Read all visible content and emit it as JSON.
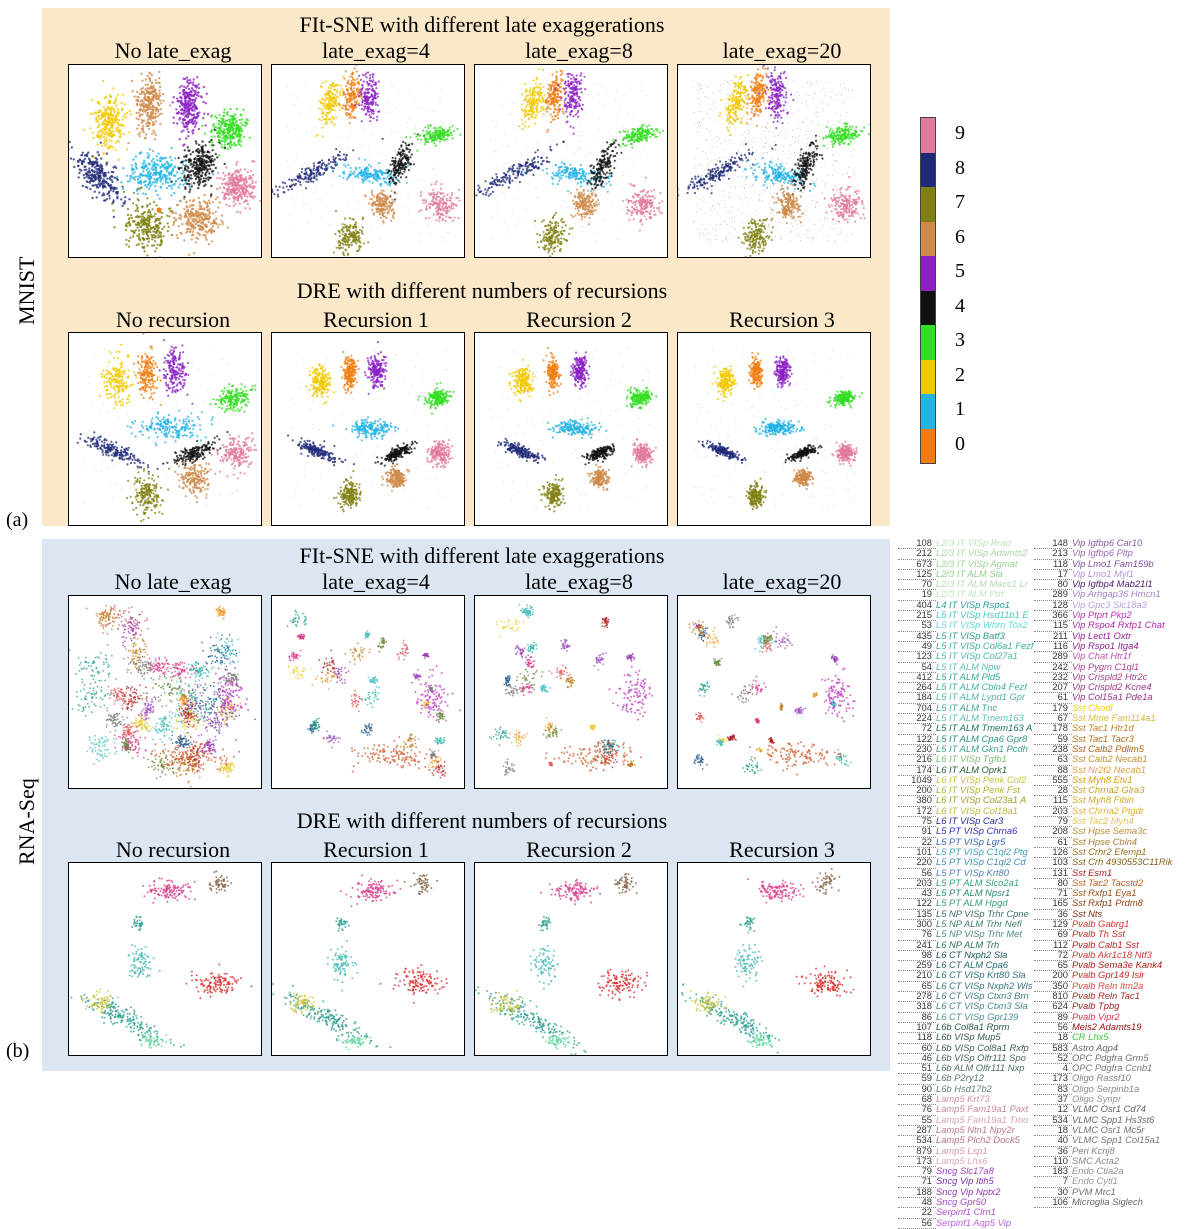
{
  "figure": {
    "a_label": "(a)",
    "b_label": "(b)",
    "mnist_label": "MNIST",
    "rnaseq_label": "RNA-Seq",
    "bg_colors": {
      "mnist": "#fbe8c8",
      "rna": "#dce6f2"
    }
  },
  "mnist": {
    "fitsne_title": "FIt-SNE with different late exaggerations",
    "dre_title": "DRE with different numbers of recursions",
    "fitsne_cols": [
      "No late_exag",
      "late_exag=4",
      "late_exag=8",
      "late_exag=20"
    ],
    "dre_cols": [
      "No recursion",
      "Recursion 1",
      "Recursion 2",
      "Recursion 3"
    ]
  },
  "rna": {
    "fitsne_title": "FIt-SNE with different late exaggerations",
    "dre_title": "DRE with different numbers of recursions",
    "fitsne_cols": [
      "No late_exag",
      "late_exag=4",
      "late_exag=8",
      "late_exag=20"
    ],
    "dre_cols": [
      "No recursion",
      "Recursion 1",
      "Recursion 2",
      "Recursion 3"
    ]
  },
  "colorbar": {
    "labels": [
      "9",
      "8",
      "7",
      "6",
      "5",
      "4",
      "3",
      "2",
      "1",
      "0"
    ],
    "colors": [
      "#e17a9a",
      "#1f2a78",
      "#808012",
      "#cf8a4a",
      "#8b1fc4",
      "#111111",
      "#33dd22",
      "#f0c800",
      "#22b3e6",
      "#f07d12"
    ]
  },
  "legend_left": [
    {
      "n": "108",
      "t": "L2/3 IT VISp Rrad",
      "c": "#b8e6b8"
    },
    {
      "n": "212",
      "t": "L2/3 IT VISp Adamts2",
      "c": "#a8d8a0"
    },
    {
      "n": "673",
      "t": "L2/3 IT VISp Agmat",
      "c": "#9ad49a"
    },
    {
      "n": "125",
      "t": "L2/3 IT ALM Sla",
      "c": "#8fd08f"
    },
    {
      "n": "70",
      "t": "L2/3 IT ALM Macc1 Lr",
      "c": "#b0dcb0"
    },
    {
      "n": "19",
      "t": "L2/3 IT ALM Ptrf",
      "c": "#c0e4c0"
    },
    {
      "n": "404",
      "t": "L4 IT VISp Rspo1",
      "c": "#2aa198"
    },
    {
      "n": "215",
      "t": "L5 IT VISp Hsd11b1 E",
      "c": "#46c8c0"
    },
    {
      "n": "53",
      "t": "L5 IT VISp Whrn Tox2",
      "c": "#66d8e0"
    },
    {
      "n": "435",
      "t": "L5 IT VISp Batf3",
      "c": "#2f9f8f"
    },
    {
      "n": "49",
      "t": "L5 IT VISp Col6a1 Fezf",
      "c": "#3ab0a0"
    },
    {
      "n": "123",
      "t": "L5 IT VISp Col27a1",
      "c": "#48b8a8"
    },
    {
      "n": "54",
      "t": "L5 IT ALM Npw",
      "c": "#5cc0b4"
    },
    {
      "n": "412",
      "t": "L5 IT ALM Pld5",
      "c": "#36a890"
    },
    {
      "n": "264",
      "t": "L5 IT ALM Cbln4 Fezf",
      "c": "#40b0a0"
    },
    {
      "n": "184",
      "t": "L5 IT ALM Lypd1 Gpr",
      "c": "#4cb8a8"
    },
    {
      "n": "704",
      "t": "L5 IT ALM Tnc",
      "c": "#3aa898"
    },
    {
      "n": "224",
      "t": "L5 IT ALM Tmem163",
      "c": "#58c0b0"
    },
    {
      "n": "72",
      "t": "L5 IT ALM Tmem163 A",
      "c": "#1a7060"
    },
    {
      "n": "122",
      "t": "L5 IT ALM Cpa6 Gpr8",
      "c": "#2e8f80"
    },
    {
      "n": "230",
      "t": "L5 IT ALM Gkn1 Pcdh",
      "c": "#3c9f90"
    },
    {
      "n": "216",
      "t": "L6 IT VISp Tgfb1",
      "c": "#7ac070"
    },
    {
      "n": "174",
      "t": "L6 IT ALM Oprk1",
      "c": "#2c6030"
    },
    {
      "n": "1049",
      "t": "L6 IT VISp Penk Col2",
      "c": "#c8c040"
    },
    {
      "n": "200",
      "t": "L6 IT VISp Penk Fst",
      "c": "#b0b030"
    },
    {
      "n": "380",
      "t": "L6 IT VISp Col23a1 A",
      "c": "#a0a028"
    },
    {
      "n": "172",
      "t": "L6 IT VISp Col18a1",
      "c": "#b8b838"
    },
    {
      "n": "75",
      "t": "L6 IT VISp Car3",
      "c": "#2828a0"
    },
    {
      "n": "91",
      "t": "L5 PT VISp Chrna6",
      "c": "#3030c0"
    },
    {
      "n": "22",
      "t": "L5 PT VISp Lgr5",
      "c": "#3868b0"
    },
    {
      "n": "101",
      "t": "L5 PT VISp C1ql2 Ptg",
      "c": "#40a0c0"
    },
    {
      "n": "220",
      "t": "L5 PT VISp C1ql2 Cd",
      "c": "#4090b0"
    },
    {
      "n": "56",
      "t": "L5 PT VISp Krt80",
      "c": "#5080b8"
    },
    {
      "n": "203",
      "t": "L5 PT ALM Slco2a1",
      "c": "#30a080"
    },
    {
      "n": "43",
      "t": "L5 PT ALM Npsr1",
      "c": "#2c8870"
    },
    {
      "n": "122",
      "t": "L5 PT ALM Hpgd",
      "c": "#38a078"
    },
    {
      "n": "135",
      "t": "L5 NP VISp Trhr Cpne",
      "c": "#3a7068"
    },
    {
      "n": "300",
      "t": "L5 NP ALM Trhr Nefl",
      "c": "#408078"
    },
    {
      "n": "76",
      "t": "L5 NP VISp Trhr Met",
      "c": "#4c8c84"
    },
    {
      "n": "241",
      "t": "L6 NP ALM Trh",
      "c": "#2a7060"
    },
    {
      "n": "98",
      "t": "L6 CT Nxph2 Sla",
      "c": "#205860"
    },
    {
      "n": "259",
      "t": "L6 CT ALM Cpa6",
      "c": "#286870"
    },
    {
      "n": "210",
      "t": "L6 CT VISp Krt80 Sla",
      "c": "#307078"
    },
    {
      "n": "65",
      "t": "L6 CT VISp Nxph2 Wls",
      "c": "#387880"
    },
    {
      "n": "278",
      "t": "L6 CT VISp Ctxn3 Brn",
      "c": "#408088"
    },
    {
      "n": "318",
      "t": "L6 CT VISp Ctxn3 Sla",
      "c": "#488890"
    },
    {
      "n": "86",
      "t": "L6 CT VISp Gpr139",
      "c": "#509098"
    },
    {
      "n": "107",
      "t": "L6b Col8a1 Rprm",
      "c": "#305848"
    },
    {
      "n": "118",
      "t": "L6b VISp Mup5",
      "c": "#385850"
    },
    {
      "n": "60",
      "t": "L6b VISp Col8a1 Rxfp",
      "c": "#406058"
    },
    {
      "n": "46",
      "t": "L6b VISp Olfr111 Spo",
      "c": "#486860"
    },
    {
      "n": "51",
      "t": "L6b ALM Olfr111 Nxp",
      "c": "#507068"
    },
    {
      "n": "59",
      "t": "L6b P2ry12",
      "c": "#587870"
    },
    {
      "n": "90",
      "t": "L6b Hsd17b2",
      "c": "#608078"
    },
    {
      "n": "68",
      "t": "Lamp5 Krt73",
      "c": "#d090a0"
    },
    {
      "n": "76",
      "t": "Lamp5 Fam19a1 Paxt",
      "c": "#c88898"
    },
    {
      "n": "55",
      "t": "Lamp5 Fam19a1 Tmo",
      "c": "#d8a0b0"
    },
    {
      "n": "287",
      "t": "Lamp5 Ntn1 Npy2r",
      "c": "#c07888"
    },
    {
      "n": "534",
      "t": "Lamp5 Plch2 Dock5",
      "c": "#b87080"
    },
    {
      "n": "879",
      "t": "Lamp5 Lsp1",
      "c": "#d898a8"
    },
    {
      "n": "173",
      "t": "Lamp5 Lhx6",
      "c": "#e0a8b8"
    },
    {
      "n": "79",
      "t": "Sncg Slc17a8",
      "c": "#a040c0"
    },
    {
      "n": "71",
      "t": "Sncg Vip Itih5",
      "c": "#8030a0"
    },
    {
      "n": "188",
      "t": "Sncg Vip Nptx2",
      "c": "#9038b0"
    },
    {
      "n": "48",
      "t": "Sncg Gpr50",
      "c": "#a848c8"
    },
    {
      "n": "22",
      "t": "Serpinf1 Clrn1",
      "c": "#b050d0"
    },
    {
      "n": "56",
      "t": "Serpinf1 Aqp5 Vip",
      "c": "#c060e0"
    }
  ],
  "legend_right": [
    {
      "n": "148",
      "t": "Vip Igfbp6 Car10",
      "c": "#8a5aa8"
    },
    {
      "n": "213",
      "t": "Vip Igfbp6 Pltp",
      "c": "#9a6ab8"
    },
    {
      "n": "118",
      "t": "Vip Lmo1 Fam159b",
      "c": "#8050a0"
    },
    {
      "n": "17",
      "t": "Vip Lmo1 Myl1",
      "c": "#b090d0"
    },
    {
      "n": "80",
      "t": "Vip Igfbp4 Mab21l1",
      "c": "#502070"
    },
    {
      "n": "289",
      "t": "Vip Arhgap36 Hmcn1",
      "c": "#a080c8"
    },
    {
      "n": "128",
      "t": "Vip Gpc3 Slc18a3",
      "c": "#b8a0e0"
    },
    {
      "n": "366",
      "t": "Vip Ptprt Pkp2",
      "c": "#c030c0"
    },
    {
      "n": "115",
      "t": "Vip Rspo4 Rxfp1 Chat",
      "c": "#b028b0"
    },
    {
      "n": "211",
      "t": "Vip Lect1 Oxtr",
      "c": "#a020a0"
    },
    {
      "n": "116",
      "t": "Vip Rspo1 Itga4",
      "c": "#902090"
    },
    {
      "n": "289",
      "t": "Vip Chat Htr1f",
      "c": "#c050b8"
    },
    {
      "n": "242",
      "t": "Vip Pygm C1ql1",
      "c": "#b04098"
    },
    {
      "n": "232",
      "t": "Vip Crispld2 Htr2c",
      "c": "#a04090"
    },
    {
      "n": "207",
      "t": "Vip Crispld2 Kcne4",
      "c": "#9a3888"
    },
    {
      "n": "61",
      "t": "Vip Col15a1 Pde1a",
      "c": "#a03088"
    },
    {
      "n": "179",
      "t": "Sst Chodl",
      "c": "#f0d000"
    },
    {
      "n": "67",
      "t": "Sst Mme Fam114a1",
      "c": "#e0b840"
    },
    {
      "n": "178",
      "t": "Sst Tac1 Htr1d",
      "c": "#c08020"
    },
    {
      "n": "59",
      "t": "Sst Tac1 Tacr3",
      "c": "#b07018"
    },
    {
      "n": "238",
      "t": "Sst Calb2 Pdlim5",
      "c": "#a86018"
    },
    {
      "n": "63",
      "t": "Sst Calb2 Necab1",
      "c": "#c09030"
    },
    {
      "n": "88",
      "t": "Sst Nr2f2 Necab1",
      "c": "#e0a040"
    },
    {
      "n": "555",
      "t": "Sst Myh8 Etv1",
      "c": "#d8a000"
    },
    {
      "n": "28",
      "t": "Sst Chrna2 Glra3",
      "c": "#c8a020"
    },
    {
      "n": "115",
      "t": "Sst Myh8 Fibin",
      "c": "#d0a828"
    },
    {
      "n": "203",
      "t": "Sst Chrna2 Ptgdr",
      "c": "#e0b030"
    },
    {
      "n": "79",
      "t": "Sst Tac2 Myh4",
      "c": "#e8c050"
    },
    {
      "n": "208",
      "t": "Sst Hpse Sema3c",
      "c": "#b89030"
    },
    {
      "n": "61",
      "t": "Sst Hpse Cbln4",
      "c": "#a88028"
    },
    {
      "n": "126",
      "t": "Sst Crhr2 Efemp1",
      "c": "#987020"
    },
    {
      "n": "103",
      "t": "Sst Crh 4930553C11Rik",
      "c": "#886018"
    },
    {
      "n": "131",
      "t": "Sst Esm1",
      "c": "#b02020"
    },
    {
      "n": "80",
      "t": "Sst Tac2 Tacstd2",
      "c": "#c06020"
    },
    {
      "n": "71",
      "t": "Sst Rxfp1 Eya1",
      "c": "#a05018"
    },
    {
      "n": "165",
      "t": "Sst Rxfp1 Prdm8",
      "c": "#904010"
    },
    {
      "n": "36",
      "t": "Sst Nts",
      "c": "#803008"
    },
    {
      "n": "129",
      "t": "Pvalb Gabrg1",
      "c": "#e03030"
    },
    {
      "n": "69",
      "t": "Pvalb Th Sst",
      "c": "#d02828"
    },
    {
      "n": "112",
      "t": "Pvalb Calb1 Sst",
      "c": "#c02020"
    },
    {
      "n": "72",
      "t": "Pvalb Akr1c18 Ntf3",
      "c": "#d03838"
    },
    {
      "n": "65",
      "t": "Pvalb Sema3e Kank4",
      "c": "#b01818"
    },
    {
      "n": "200",
      "t": "Pvalb Gpr149 Islr",
      "c": "#c82828"
    },
    {
      "n": "350",
      "t": "Pvalb Reln Itm2a",
      "c": "#e04848"
    },
    {
      "n": "810",
      "t": "Pvalb Reln Tac1",
      "c": "#b02828"
    },
    {
      "n": "624",
      "t": "Pvalb Tpbg",
      "c": "#a02020"
    },
    {
      "n": "89",
      "t": "Pvalb Vipr2",
      "c": "#e03050"
    },
    {
      "n": "56",
      "t": "Meis2 Adamts19",
      "c": "#a01010"
    },
    {
      "n": "18",
      "t": "CR Lhx5",
      "c": "#40c040"
    },
    {
      "n": "583",
      "t": "Astro Aqp4",
      "c": "#666666"
    },
    {
      "n": "52",
      "t": "OPC Pdgfra Grm5",
      "c": "#707070"
    },
    {
      "n": "4",
      "t": "OPC Pdgfra Ccnb1",
      "c": "#787878"
    },
    {
      "n": "173",
      "t": "Oligo Rassf10",
      "c": "#808080"
    },
    {
      "n": "83",
      "t": "Oligo Serpinb1a",
      "c": "#888888"
    },
    {
      "n": "37",
      "t": "Oligo Synpr",
      "c": "#909090"
    },
    {
      "n": "12",
      "t": "VLMC Osr1 Cd74",
      "c": "#606060"
    },
    {
      "n": "534",
      "t": "VLMC Spp1 Hs3st6",
      "c": "#686868"
    },
    {
      "n": "18",
      "t": "VLMC Osr1 Mc5r",
      "c": "#707070"
    },
    {
      "n": "40",
      "t": "VLMC Spp1 Col15a1",
      "c": "#787878"
    },
    {
      "n": "36",
      "t": "Peri Kcnj8",
      "c": "#808080"
    },
    {
      "n": "110",
      "t": "SMC Acta2",
      "c": "#888888"
    },
    {
      "n": "183",
      "t": "Endo Ctla2a",
      "c": "#909090"
    },
    {
      "n": "7",
      "t": "Endo Cytl1",
      "c": "#989898"
    },
    {
      "n": "30",
      "t": "PVM Mrc1",
      "c": "#707070"
    },
    {
      "n": "106",
      "t": "Microglia Siglech",
      "c": "#686868"
    }
  ]
}
